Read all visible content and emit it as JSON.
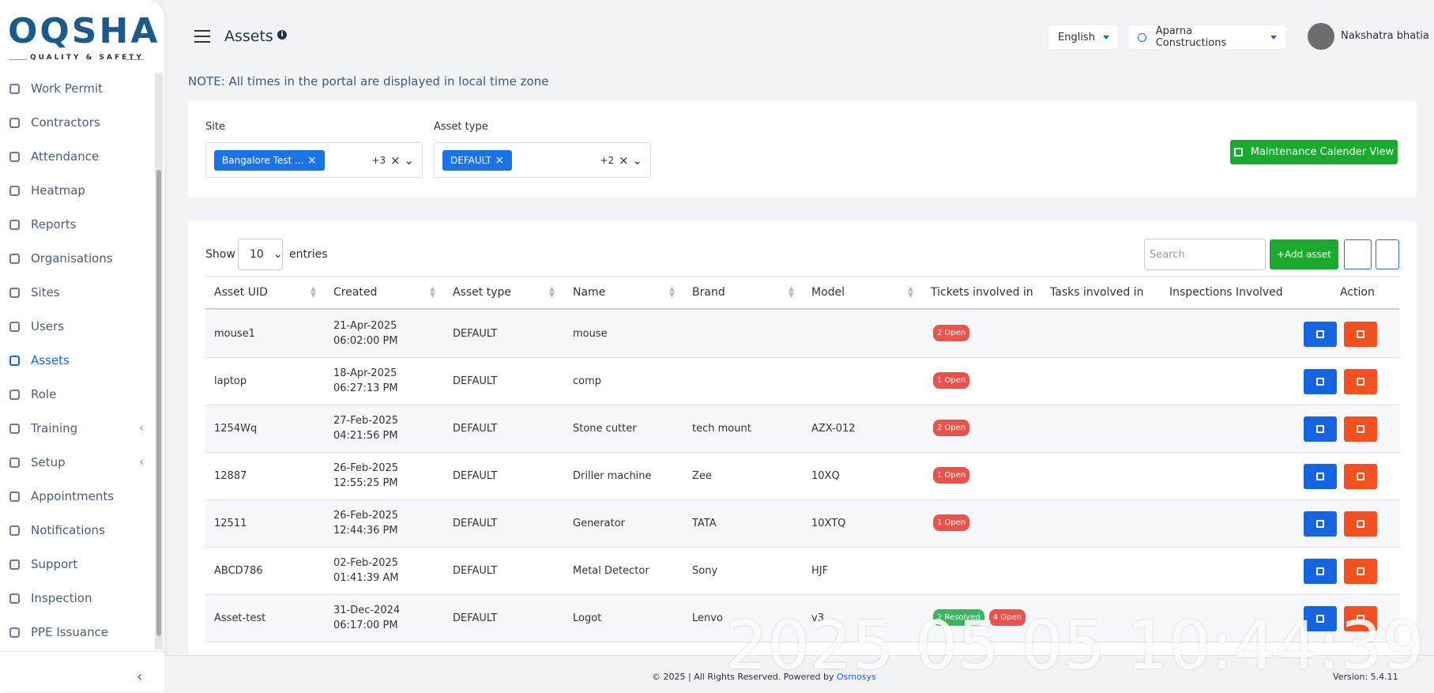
{
  "logo": {
    "name": "OQSHA",
    "tagline": "QUALITY & SAFETY"
  },
  "sidebar": {
    "active_index": 8,
    "items": [
      {
        "label": "Work Permit"
      },
      {
        "label": "Contractors"
      },
      {
        "label": "Attendance"
      },
      {
        "label": "Heatmap"
      },
      {
        "label": "Reports"
      },
      {
        "label": "Organisations"
      },
      {
        "label": "Sites"
      },
      {
        "label": "Users"
      },
      {
        "label": "Assets"
      },
      {
        "label": "Role"
      },
      {
        "label": "Training",
        "submenu": true
      },
      {
        "label": "Setup",
        "submenu": true
      },
      {
        "label": "Appointments"
      },
      {
        "label": "Notifications"
      },
      {
        "label": "Support"
      },
      {
        "label": "Inspection"
      },
      {
        "label": "PPE Issuance"
      }
    ]
  },
  "header": {
    "title": "Assets",
    "language": "English",
    "organisation": "Aparna Constructions",
    "user": "Nakshatra bhatia"
  },
  "note": "NOTE: All times in the portal are displayed in local time zone",
  "filters": {
    "site": {
      "label": "Site",
      "chip": "Bangalore Test ...",
      "more": "+3"
    },
    "asset_type": {
      "label": "Asset type",
      "chip": "DEFAULT",
      "more": "+2"
    },
    "calendar_button": "Maintenance Calender View"
  },
  "table_controls": {
    "show": "Show",
    "entries_value": "10",
    "entries": "entries",
    "search_placeholder": "Search",
    "add_button": "+Add asset"
  },
  "table": {
    "columns": [
      "Asset UID",
      "Created",
      "Asset type",
      "Name",
      "Brand",
      "Model",
      "Tickets involved in",
      "Tasks involved in",
      "Inspections Involved",
      "Action"
    ],
    "rows": [
      {
        "uid": "mouse1",
        "date": "21-Apr-2025",
        "time": "06:02:00 PM",
        "type": "DEFAULT",
        "name": "mouse",
        "brand": "",
        "model": "",
        "tickets": [
          {
            "text": "2 Open",
            "color": "#e8534c"
          }
        ]
      },
      {
        "uid": "laptop",
        "date": "18-Apr-2025",
        "time": "06:27:13 PM",
        "type": "DEFAULT",
        "name": "comp",
        "brand": "",
        "model": "",
        "tickets": [
          {
            "text": "1 Open",
            "color": "#e8534c"
          }
        ]
      },
      {
        "uid": "1254Wq",
        "date": "27-Feb-2025",
        "time": "04:21:56 PM",
        "type": "DEFAULT",
        "name": "Stone cutter",
        "brand": "tech mount",
        "model": "AZX-012",
        "tickets": [
          {
            "text": "2 Open",
            "color": "#e8534c"
          }
        ]
      },
      {
        "uid": "12887",
        "date": "26-Feb-2025",
        "time": "12:55:25 PM",
        "type": "DEFAULT",
        "name": "Driller machine",
        "brand": "Zee",
        "model": "10XQ",
        "tickets": [
          {
            "text": "1 Open",
            "color": "#e8534c"
          }
        ]
      },
      {
        "uid": "12511",
        "date": "26-Feb-2025",
        "time": "12:44:36 PM",
        "type": "DEFAULT",
        "name": "Generator",
        "brand": "TATA",
        "model": "10XTQ",
        "tickets": [
          {
            "text": "1 Open",
            "color": "#e8534c"
          }
        ]
      },
      {
        "uid": "ABCD786",
        "date": "02-Feb-2025",
        "time": "01:41:39 AM",
        "type": "DEFAULT",
        "name": "Metal Detector",
        "brand": "Sony",
        "model": "HJF",
        "tickets": []
      },
      {
        "uid": "Asset-test",
        "date": "31-Dec-2024",
        "time": "06:17:00 PM",
        "type": "DEFAULT",
        "name": "Logot",
        "brand": "Lenvo",
        "model": "v3",
        "tickets": [
          {
            "text": "2 Resolved",
            "color": "#3cb55f"
          },
          {
            "text": "4 Open",
            "color": "#e8534c"
          }
        ]
      }
    ]
  },
  "footer": {
    "text": "© 2025 | All Rights Reserved. Powered by",
    "link": "Osmosys",
    "version": "Version: 5.4.11"
  },
  "watermark": "2025 05 05 10:44:39"
}
